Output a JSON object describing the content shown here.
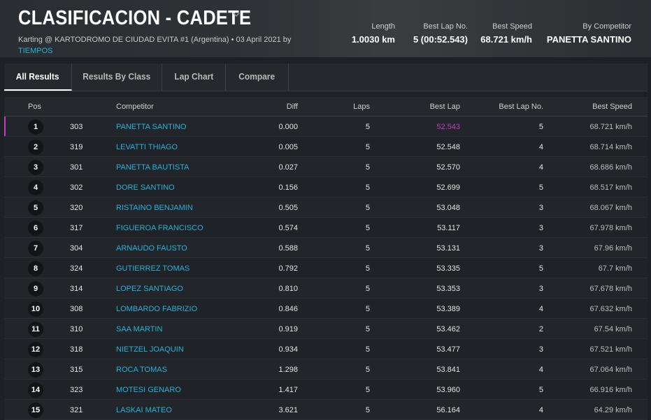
{
  "header": {
    "title": "CLASIFICACION - CADETE",
    "subtitle": "Karting @ KARTODROMO DE CIUDAD EVITA #1 (Argentina) • 03 April 2021 by",
    "subtitle_link": "TIEMPOS",
    "stats": [
      {
        "label": "Length",
        "value": "1.0030 km"
      },
      {
        "label": "Best Lap No.",
        "value": "5 (00:52.543)"
      },
      {
        "label": "Best Speed",
        "value": "68.721 km/h"
      },
      {
        "label": "By Competitor",
        "value": "PANETTA SANTINO"
      }
    ]
  },
  "tabs": [
    {
      "label": "All Results",
      "active": true
    },
    {
      "label": "Results By Class",
      "active": false
    },
    {
      "label": "Lap Chart",
      "active": false
    },
    {
      "label": "Compare",
      "active": false
    }
  ],
  "table": {
    "columns": [
      "Pos",
      "Competitor",
      "Diff",
      "Laps",
      "Best Lap",
      "Best Lap No.",
      "Best Speed"
    ],
    "rows": [
      {
        "pos": "1",
        "num": "303",
        "name": "PANETTA SANTINO",
        "diff": "0.000",
        "laps": "5",
        "best_lap": "52.543",
        "best_lap_no": "5",
        "best_speed": "68.721 km/h"
      },
      {
        "pos": "2",
        "num": "319",
        "name": "LEVATTI THIAGO",
        "diff": "0.005",
        "laps": "5",
        "best_lap": "52.548",
        "best_lap_no": "4",
        "best_speed": "68.714 km/h"
      },
      {
        "pos": "3",
        "num": "301",
        "name": "PANETTA BAUTISTA",
        "diff": "0.027",
        "laps": "5",
        "best_lap": "52.570",
        "best_lap_no": "4",
        "best_speed": "68.686 km/h"
      },
      {
        "pos": "4",
        "num": "302",
        "name": "DORE SANTINO",
        "diff": "0.156",
        "laps": "5",
        "best_lap": "52.699",
        "best_lap_no": "5",
        "best_speed": "68.517 km/h"
      },
      {
        "pos": "5",
        "num": "320",
        "name": "RISTAINO BENJAMIN",
        "diff": "0.505",
        "laps": "5",
        "best_lap": "53.048",
        "best_lap_no": "3",
        "best_speed": "68.067 km/h"
      },
      {
        "pos": "6",
        "num": "317",
        "name": "FIGUEROA FRANCISCO",
        "diff": "0.574",
        "laps": "5",
        "best_lap": "53.117",
        "best_lap_no": "3",
        "best_speed": "67.978 km/h"
      },
      {
        "pos": "7",
        "num": "304",
        "name": "ARNAUDO FAUSTO",
        "diff": "0.588",
        "laps": "5",
        "best_lap": "53.131",
        "best_lap_no": "3",
        "best_speed": "67.96 km/h"
      },
      {
        "pos": "8",
        "num": "324",
        "name": "GUTIERREZ TOMAS",
        "diff": "0.792",
        "laps": "5",
        "best_lap": "53.335",
        "best_lap_no": "5",
        "best_speed": "67.7 km/h"
      },
      {
        "pos": "9",
        "num": "314",
        "name": "LOPEZ SANTIAGO",
        "diff": "0.810",
        "laps": "5",
        "best_lap": "53.353",
        "best_lap_no": "3",
        "best_speed": "67.678 km/h"
      },
      {
        "pos": "10",
        "num": "308",
        "name": "LOMBARDO FABRIZIO",
        "diff": "0.846",
        "laps": "5",
        "best_lap": "53.389",
        "best_lap_no": "4",
        "best_speed": "67.632 km/h"
      },
      {
        "pos": "11",
        "num": "310",
        "name": "SAA MARTIN",
        "diff": "0.919",
        "laps": "5",
        "best_lap": "53.462",
        "best_lap_no": "2",
        "best_speed": "67.54 km/h"
      },
      {
        "pos": "12",
        "num": "318",
        "name": "NIETZEL JOAQUIN",
        "diff": "0.934",
        "laps": "5",
        "best_lap": "53.477",
        "best_lap_no": "3",
        "best_speed": "67.521 km/h"
      },
      {
        "pos": "13",
        "num": "315",
        "name": "ROCA TOMAS",
        "diff": "1.298",
        "laps": "5",
        "best_lap": "53.841",
        "best_lap_no": "4",
        "best_speed": "67.064 km/h"
      },
      {
        "pos": "14",
        "num": "323",
        "name": "MOTESI GENARO",
        "diff": "1.417",
        "laps": "5",
        "best_lap": "53.960",
        "best_lap_no": "5",
        "best_speed": "66.916 km/h"
      },
      {
        "pos": "15",
        "num": "321",
        "name": "LASKAI MATEO",
        "diff": "3.621",
        "laps": "5",
        "best_lap": "56.164",
        "best_lap_no": "4",
        "best_speed": "64.29 km/h"
      }
    ]
  },
  "colors": {
    "link": "#26b3d9",
    "best_lap_highlight": "#c33ec3",
    "background": "#1d2024"
  },
  "icons": {
    "title_dropdown": "chevron-down-icon"
  }
}
